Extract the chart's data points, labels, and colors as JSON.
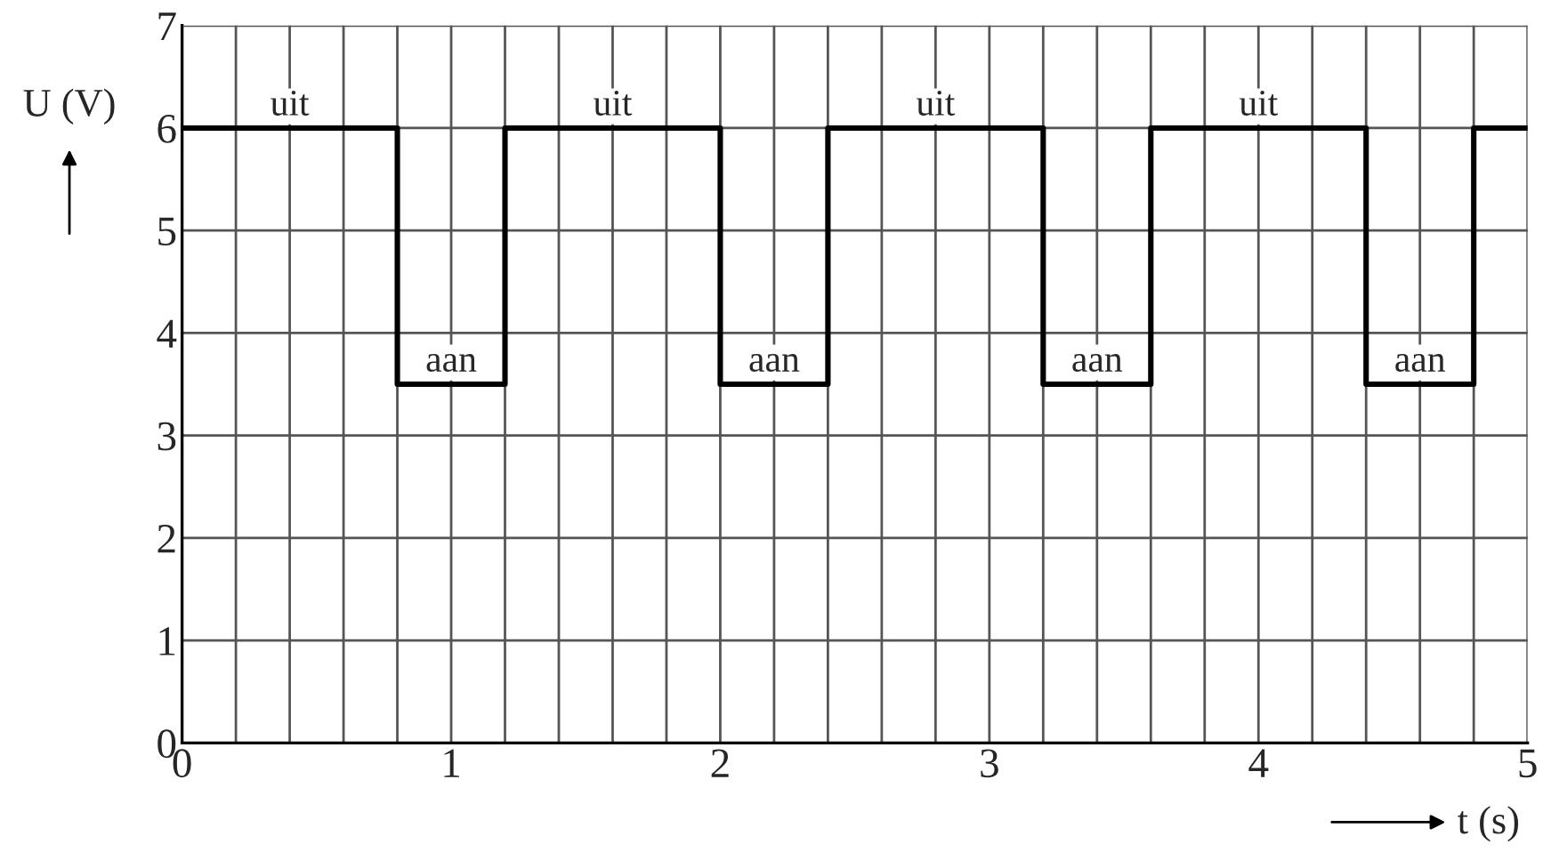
{
  "chart_data": {
    "type": "step",
    "xlabel": "t (s)",
    "ylabel": "U (V)",
    "x": [
      0,
      0.8,
      1.2,
      2.0,
      2.4,
      3.2,
      3.6,
      4.4,
      4.8,
      5
    ],
    "series": [
      {
        "color": "#000000",
        "values": [
          6,
          3.5,
          6,
          3.5,
          6,
          3.5,
          6,
          3.5,
          6,
          6
        ]
      }
    ],
    "xlim": [
      0,
      5
    ],
    "ylim": [
      0,
      7
    ],
    "xticks": [
      0,
      {
        "value": 0.2,
        "label": null
      },
      {
        "value": 0.4,
        "label": null
      },
      {
        "value": 0.6,
        "label": null
      },
      {
        "value": 0.8,
        "label": null
      },
      1,
      {
        "value": 1.2,
        "label": null
      },
      {
        "value": 1.4,
        "label": null
      },
      {
        "value": 1.6,
        "label": null
      },
      {
        "value": 1.8,
        "label": null
      },
      2,
      {
        "value": 2.2,
        "label": null
      },
      {
        "value": 2.4,
        "label": null
      },
      {
        "value": 2.6,
        "label": null
      },
      {
        "value": 2.8,
        "label": null
      },
      3,
      {
        "value": 3.2,
        "label": null
      },
      {
        "value": 3.4,
        "label": null
      },
      {
        "value": 3.6,
        "label": null
      },
      {
        "value": 3.8,
        "label": null
      },
      4,
      {
        "value": 4.2,
        "label": null
      },
      {
        "value": 4.4,
        "label": null
      },
      {
        "value": 4.6,
        "label": null
      },
      {
        "value": 4.8,
        "label": null
      },
      5
    ],
    "yticks": [
      0,
      1,
      2,
      3,
      4,
      5,
      6,
      7
    ],
    "grid": true,
    "line_style": "solid",
    "marker": "none",
    "annotations": [
      {
        "text": "uit",
        "x": 0.4,
        "y": 6
      },
      {
        "text": "uit",
        "x": 1.6,
        "y": 6
      },
      {
        "text": "uit",
        "x": 2.8,
        "y": 6
      },
      {
        "text": "uit",
        "x": 4.0,
        "y": 6
      },
      {
        "text": "aan",
        "x": 1.0,
        "y": 3.5
      },
      {
        "text": "aan",
        "x": 2.2,
        "y": 3.5
      },
      {
        "text": "aan",
        "x": 3.4,
        "y": 3.5
      },
      {
        "text": "aan",
        "x": 4.6,
        "y": 3.5
      }
    ]
  }
}
